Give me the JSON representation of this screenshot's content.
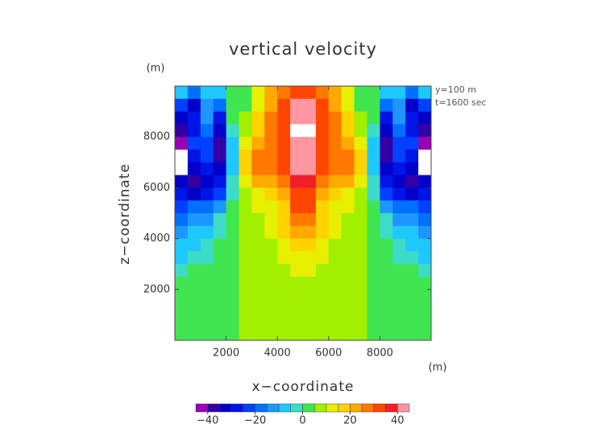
{
  "chart_data": {
    "type": "contour",
    "title": "vertical velocity",
    "xlabel": "x−coordinate",
    "ylabel": "z−coordinate",
    "x_unit": "(m)",
    "y_unit": "(m)",
    "annotations": [
      "y=100 m",
      "t=1600 sec"
    ],
    "xlim": [
      0,
      10000
    ],
    "ylim": [
      0,
      10000
    ],
    "xticks": [
      2000,
      4000,
      6000,
      8000
    ],
    "yticks": [
      2000,
      4000,
      6000,
      8000
    ],
    "x": [
      250,
      750,
      1250,
      1750,
      2250,
      2750,
      3250,
      3750,
      4250,
      4750,
      5250,
      5750,
      6250,
      6750,
      7250,
      7750,
      8250,
      8750,
      9250,
      9750
    ],
    "y": [
      9750,
      9250,
      8750,
      8250,
      7750,
      7250,
      6750,
      6250,
      5750,
      5250,
      4750,
      4250,
      3750,
      3250,
      2750,
      2250,
      1750,
      1250,
      750,
      250
    ],
    "z": [
      [
        -8,
        -20,
        -10,
        -8,
        2,
        3,
        12,
        22,
        28,
        34,
        34,
        28,
        22,
        12,
        3,
        2,
        -8,
        -10,
        -20,
        -8
      ],
      [
        -25,
        -32,
        -12,
        -20,
        2,
        4,
        12,
        22,
        32,
        40,
        40,
        32,
        22,
        12,
        4,
        2,
        -20,
        -12,
        -32,
        -25
      ],
      [
        -35,
        -30,
        -15,
        -28,
        0,
        5,
        15,
        25,
        33,
        42,
        42,
        33,
        25,
        15,
        5,
        0,
        -28,
        -15,
        -30,
        -35
      ],
      [
        -40,
        -28,
        -18,
        -35,
        -5,
        7,
        18,
        28,
        34,
        46,
        46,
        34,
        28,
        18,
        7,
        -5,
        -35,
        -18,
        -28,
        -40
      ],
      [
        -42,
        -25,
        -22,
        -38,
        -8,
        10,
        22,
        28,
        33,
        44,
        44,
        33,
        28,
        22,
        10,
        -8,
        -38,
        -22,
        -25,
        -42
      ],
      [
        -48,
        -30,
        -25,
        -38,
        -10,
        15,
        26,
        29,
        33,
        42,
        42,
        33,
        29,
        26,
        15,
        -10,
        -38,
        -25,
        -30,
        -48
      ],
      [
        -48,
        -35,
        -28,
        -32,
        -8,
        18,
        27,
        28,
        32,
        40,
        40,
        32,
        28,
        27,
        18,
        -8,
        -32,
        -28,
        -35,
        -48
      ],
      [
        -35,
        -38,
        -35,
        -28,
        -2,
        12,
        22,
        23,
        28,
        37,
        37,
        28,
        23,
        22,
        12,
        -2,
        -28,
        -35,
        -38,
        -35
      ],
      [
        -30,
        -32,
        -28,
        -22,
        -5,
        8,
        14,
        15,
        20,
        33,
        33,
        20,
        15,
        14,
        8,
        -5,
        -22,
        -28,
        -32,
        -30
      ],
      [
        -22,
        -20,
        -18,
        -12,
        2,
        7,
        10,
        10,
        15,
        30,
        30,
        15,
        10,
        10,
        7,
        2,
        -12,
        -18,
        -20,
        -22
      ],
      [
        -16,
        -14,
        -12,
        -5,
        2,
        6,
        9,
        12,
        18,
        26,
        26,
        18,
        12,
        9,
        6,
        2,
        -5,
        -12,
        -14,
        -16
      ],
      [
        -12,
        -9,
        -7,
        -2,
        2,
        5,
        7,
        11,
        16,
        22,
        22,
        16,
        11,
        7,
        5,
        2,
        -2,
        -7,
        -9,
        -12
      ],
      [
        -10,
        -7,
        -4,
        1,
        2,
        5,
        6,
        9,
        13,
        17,
        17,
        13,
        9,
        6,
        5,
        1,
        1,
        -4,
        -7,
        -10
      ],
      [
        -8,
        -5,
        -2,
        1,
        2,
        5,
        6,
        8,
        11,
        13,
        13,
        11,
        8,
        6,
        5,
        2,
        1,
        -2,
        -5,
        -8
      ],
      [
        -2,
        0,
        1,
        1,
        2,
        5,
        6,
        7,
        9,
        11,
        11,
        9,
        7,
        6,
        5,
        2,
        1,
        1,
        0,
        -2
      ],
      [
        2,
        2,
        2,
        2,
        2,
        5,
        6,
        6,
        7,
        8,
        8,
        7,
        6,
        6,
        5,
        2,
        2,
        2,
        2,
        2
      ],
      [
        2,
        2,
        2,
        2,
        2,
        5,
        6,
        6,
        6,
        7,
        7,
        6,
        6,
        6,
        5,
        2,
        2,
        2,
        2,
        2
      ],
      [
        2,
        2,
        2,
        2,
        2,
        5,
        6,
        6,
        6,
        7,
        7,
        6,
        6,
        6,
        5,
        2,
        2,
        2,
        2,
        2
      ],
      [
        2,
        2,
        2,
        2,
        2,
        5,
        6,
        6,
        6,
        7,
        7,
        6,
        6,
        6,
        5,
        2,
        2,
        2,
        2,
        2
      ],
      [
        2,
        2,
        2,
        2,
        2,
        5,
        6,
        6,
        6,
        7,
        7,
        6,
        6,
        6,
        5,
        2,
        2,
        2,
        2,
        2
      ]
    ],
    "colorbar": {
      "levels": [
        -45,
        -40,
        -35,
        -30,
        -25,
        -20,
        -15,
        -10,
        -5,
        0,
        5,
        10,
        15,
        20,
        25,
        30,
        35,
        40,
        45
      ],
      "colors": [
        "#9a00b4",
        "#3200a5",
        "#0000c8",
        "#0014e6",
        "#0040ff",
        "#0070ff",
        "#1e96ff",
        "#1ec8ff",
        "#3cdcc8",
        "#40e650",
        "#a0f000",
        "#e6f000",
        "#ffd200",
        "#ffaa00",
        "#ff7800",
        "#ff4600",
        "#f01e28",
        "#ff96a0"
      ],
      "out_of_range_color": "#ffffff",
      "ticks": [
        {
          "value": -40,
          "label": "−40"
        },
        {
          "value": -20,
          "label": "−20"
        },
        0,
        20,
        40
      ]
    }
  }
}
